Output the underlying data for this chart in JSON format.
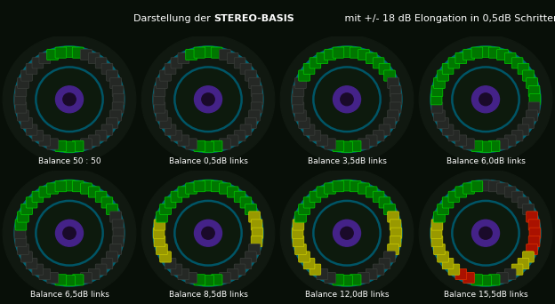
{
  "title_pre": "Darstellung der ",
  "title_bold": "STEREO-BASIS",
  "title_post": " mit +/- 18 dB Elongation in 0,5dB Schritten",
  "bg_color": "#080f08",
  "panel_labels": [
    "Balance 50 : 50",
    "Balance 0,5dB links",
    "Balance 3,5dB links",
    "Balance 6,0dB links",
    "Balance 6,5dB links",
    "Balance 8,5dB links",
    "Balance 12,0dB links",
    "Balance 15,5dB links"
  ],
  "n_leds": 36,
  "ncols": 4,
  "nrows": 2,
  "led_configs": [
    {
      "green_leds": [
        0,
        1,
        17,
        18,
        19,
        34,
        35
      ],
      "yellow_leds": [],
      "red_leds": []
    },
    {
      "green_leds": [
        0,
        1,
        17,
        18,
        19,
        34,
        35
      ],
      "yellow_leds": [],
      "red_leds": []
    },
    {
      "green_leds": [
        0,
        1,
        2,
        3,
        4,
        5,
        6,
        17,
        18,
        19,
        30,
        31,
        32,
        33,
        34,
        35
      ],
      "yellow_leds": [],
      "red_leds": []
    },
    {
      "green_leds": [
        0,
        1,
        2,
        3,
        4,
        5,
        6,
        7,
        8,
        9,
        17,
        18,
        19,
        27,
        28,
        29,
        30,
        31,
        32,
        33,
        34,
        35
      ],
      "yellow_leds": [],
      "red_leds": []
    },
    {
      "green_leds": [
        0,
        1,
        2,
        3,
        4,
        5,
        6,
        17,
        18,
        19,
        28,
        29,
        30,
        31,
        32,
        33,
        34,
        35
      ],
      "yellow_leds": [],
      "red_leds": []
    },
    {
      "green_leds": [
        0,
        1,
        2,
        3,
        4,
        5,
        6,
        17,
        18,
        19,
        29,
        30,
        31,
        32,
        33,
        34,
        35
      ],
      "yellow_leds": [
        7,
        8,
        9,
        10,
        24,
        25,
        26,
        27,
        28
      ],
      "red_leds": []
    },
    {
      "green_leds": [
        0,
        1,
        2,
        3,
        4,
        5,
        6,
        17,
        18,
        19,
        29,
        30,
        31,
        32,
        33,
        34,
        35
      ],
      "yellow_leds": [
        7,
        8,
        9,
        10,
        11,
        22,
        23,
        24,
        25,
        26,
        27,
        28
      ],
      "red_leds": []
    },
    {
      "green_leds": [
        17,
        18,
        19,
        29,
        30,
        31,
        32,
        33,
        34,
        35
      ],
      "yellow_leds": [
        12,
        13,
        14,
        22,
        23,
        24,
        25,
        26,
        27,
        28
      ],
      "red_leds": [
        7,
        8,
        9,
        10,
        11,
        20,
        21
      ]
    }
  ],
  "teal_outer_color": "#006677",
  "teal_inner_color": "#005566",
  "purple_color": "#442288",
  "dark_inner": "#0d1a0d",
  "led_dark": "#252825",
  "led_dark_edge": "#3a3e3a",
  "led_green": "#007700",
  "led_green_edge": "#00cc00",
  "led_yellow": "#999900",
  "led_yellow_edge": "#cccc00",
  "led_red": "#aa1100",
  "led_red_edge": "#dd3300"
}
